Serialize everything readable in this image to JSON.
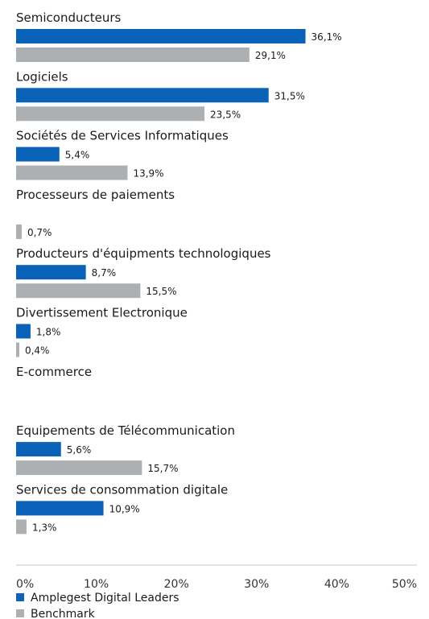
{
  "chart_data": {
    "type": "bar",
    "orientation": "horizontal",
    "categories": [
      "Semiconducteurs",
      "Logiciels",
      "Sociétés de Services Informatiques",
      "Processeurs de paiements",
      "Producteurs d'équipments technologiques",
      "Divertissement Electronique",
      "E-commerce",
      "Equipements de Télécommunication",
      "Services de consommation digitale"
    ],
    "series": [
      {
        "name": "Amplegest Digital Leaders",
        "color": "#0a62b8",
        "values": [
          36.1,
          31.5,
          5.4,
          null,
          8.7,
          1.8,
          null,
          5.6,
          10.9
        ],
        "labels": [
          "36,1%",
          "31,5%",
          "5,4%",
          "",
          "8,7%",
          "1,8%",
          "",
          "5,6%",
          "10,9%"
        ]
      },
      {
        "name": "Benchmark",
        "color": "#adb0b2",
        "values": [
          29.1,
          23.5,
          13.9,
          0.7,
          15.5,
          0.4,
          null,
          15.7,
          1.3
        ],
        "labels": [
          "29,1%",
          "23,5%",
          "13,9%",
          "0,7%",
          "15,5%",
          "0,4%",
          "",
          "15,7%",
          "1,3%"
        ]
      }
    ],
    "xlim": [
      0,
      50
    ],
    "xticks": [
      0,
      10,
      20,
      30,
      40,
      50
    ],
    "xtick_labels": [
      "0%",
      "10%",
      "20%",
      "30%",
      "40%",
      "50%"
    ],
    "grid": false,
    "legend_position": "bottom-left"
  }
}
